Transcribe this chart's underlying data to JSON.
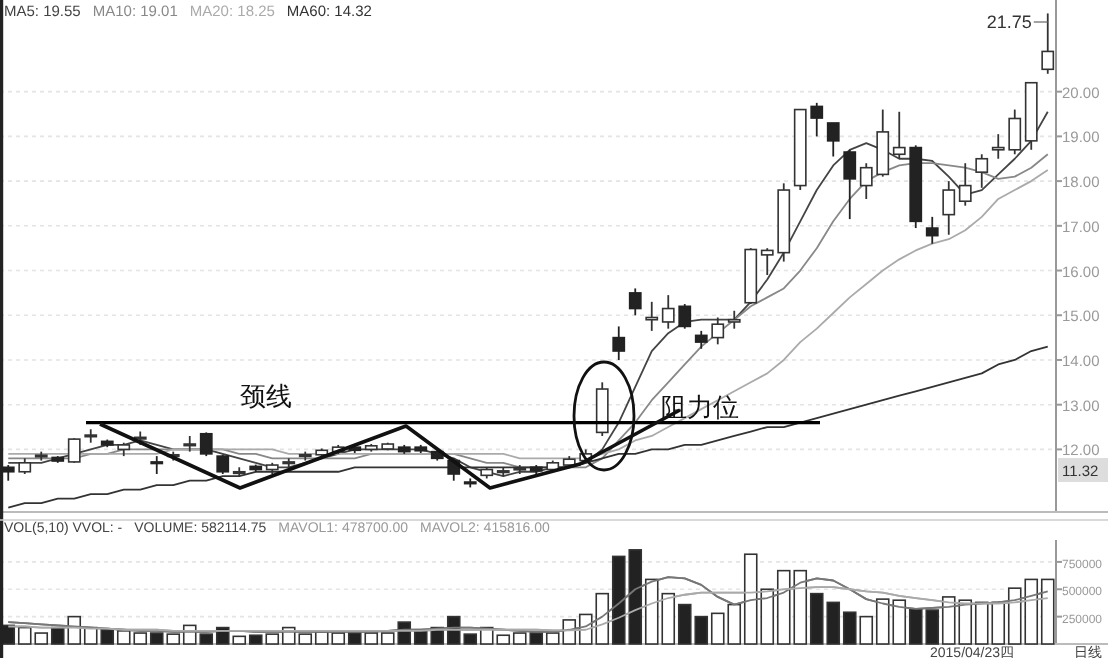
{
  "chart_data": [
    {
      "type": "candlestick",
      "categories": [
        null,
        null,
        null,
        null,
        null,
        null,
        null,
        null,
        null,
        null,
        null,
        null,
        null,
        null,
        null,
        null,
        null,
        null,
        null,
        null,
        null,
        null,
        null,
        null,
        null,
        null,
        null,
        null,
        null,
        null,
        null,
        null,
        null,
        null,
        null,
        null,
        null,
        null,
        null,
        null,
        null,
        null,
        null,
        null,
        null,
        null,
        null,
        null,
        null,
        null,
        null,
        null,
        null,
        null,
        null,
        null,
        null,
        null,
        null,
        null,
        null,
        null,
        null,
        null
      ],
      "ohlc": [
        [
          11.6,
          11.65,
          11.3,
          11.5
        ],
        [
          11.5,
          11.8,
          11.45,
          11.7
        ],
        [
          11.85,
          11.95,
          11.75,
          11.87
        ],
        [
          11.82,
          11.85,
          11.7,
          11.74
        ],
        [
          11.72,
          12.25,
          11.7,
          12.23
        ],
        [
          12.3,
          12.45,
          12.15,
          12.32
        ],
        [
          12.18,
          12.22,
          12.05,
          12.1
        ],
        [
          12.0,
          12.15,
          11.85,
          12.1
        ],
        [
          12.25,
          12.4,
          12.1,
          12.27
        ],
        [
          11.72,
          11.85,
          11.45,
          11.7
        ],
        [
          11.86,
          11.95,
          11.75,
          11.88
        ],
        [
          12.1,
          12.3,
          11.95,
          12.12
        ],
        [
          12.35,
          12.38,
          11.85,
          11.9
        ],
        [
          11.85,
          11.88,
          11.45,
          11.5
        ],
        [
          11.48,
          11.6,
          11.4,
          11.5
        ],
        [
          11.62,
          11.66,
          11.5,
          11.55
        ],
        [
          11.55,
          11.7,
          11.45,
          11.65
        ],
        [
          11.7,
          11.8,
          11.6,
          11.72
        ],
        [
          11.86,
          11.95,
          11.75,
          11.88
        ],
        [
          11.88,
          12.02,
          11.82,
          11.98
        ],
        [
          11.95,
          12.1,
          11.9,
          12.05
        ],
        [
          12.05,
          12.1,
          11.92,
          11.98
        ],
        [
          12.0,
          12.12,
          11.95,
          12.08
        ],
        [
          12.01,
          12.15,
          11.98,
          12.12
        ],
        [
          12.05,
          12.1,
          11.9,
          11.95
        ],
        [
          12.05,
          12.1,
          11.92,
          11.97
        ],
        [
          11.95,
          11.98,
          11.75,
          11.8
        ],
        [
          11.75,
          11.8,
          11.3,
          11.45
        ],
        [
          11.27,
          11.35,
          11.15,
          11.25
        ],
        [
          11.42,
          11.6,
          11.35,
          11.55
        ],
        [
          11.5,
          11.6,
          11.4,
          11.52
        ],
        [
          11.56,
          11.65,
          11.45,
          11.58
        ],
        [
          11.6,
          11.65,
          11.45,
          11.52
        ],
        [
          11.55,
          11.75,
          11.5,
          11.7
        ],
        [
          11.65,
          11.85,
          11.6,
          11.78
        ],
        [
          11.75,
          12.0,
          11.7,
          11.9
        ],
        [
          12.38,
          13.5,
          12.3,
          13.35
        ],
        [
          14.5,
          14.75,
          14.0,
          14.2
        ],
        [
          15.5,
          15.6,
          15.0,
          15.15
        ],
        [
          14.9,
          15.3,
          14.65,
          14.95
        ],
        [
          14.85,
          15.45,
          14.7,
          15.15
        ],
        [
          15.2,
          15.25,
          14.7,
          14.75
        ],
        [
          14.55,
          14.65,
          14.25,
          14.4
        ],
        [
          14.5,
          14.95,
          14.35,
          14.8
        ],
        [
          14.85,
          15.1,
          14.7,
          14.9
        ],
        [
          15.28,
          16.5,
          15.25,
          16.47
        ],
        [
          16.35,
          16.5,
          15.9,
          16.45
        ],
        [
          16.4,
          17.95,
          16.2,
          17.8
        ],
        [
          17.9,
          19.6,
          17.8,
          19.6
        ],
        [
          19.67,
          19.75,
          19.0,
          19.41
        ],
        [
          19.3,
          19.3,
          18.55,
          18.9
        ],
        [
          18.65,
          18.7,
          17.15,
          18.05
        ],
        [
          17.9,
          18.4,
          17.6,
          18.3
        ],
        [
          18.15,
          19.6,
          18.1,
          19.1
        ],
        [
          18.6,
          19.55,
          18.5,
          18.75
        ],
        [
          18.75,
          18.8,
          16.95,
          17.1
        ],
        [
          16.95,
          17.2,
          16.6,
          16.78
        ],
        [
          17.25,
          18.0,
          16.8,
          17.8
        ],
        [
          17.55,
          18.4,
          17.45,
          17.9
        ],
        [
          18.2,
          18.6,
          17.85,
          18.5
        ],
        [
          18.7,
          19.05,
          18.5,
          18.75
        ],
        [
          18.7,
          19.6,
          18.6,
          19.4
        ],
        [
          18.9,
          20.2,
          18.7,
          20.2
        ],
        [
          20.5,
          21.75,
          20.4,
          20.9
        ]
      ],
      "series": [
        {
          "type": "line",
          "color": "#444444",
          "values": [
            11.7,
            11.7,
            11.7,
            11.8,
            11.9,
            12.0,
            12.1,
            12.1,
            12.2,
            12.1,
            12.0,
            12.0,
            12.0,
            11.9,
            11.8,
            11.7,
            11.6,
            11.6,
            11.7,
            11.8,
            11.9,
            12.0,
            12.0,
            12.0,
            12.0,
            12.0,
            11.9,
            11.8,
            11.6,
            11.5,
            11.4,
            11.5,
            11.5,
            11.6,
            11.6,
            11.7,
            12.0,
            12.6,
            13.4,
            14.2,
            14.6,
            14.85,
            14.9,
            14.9,
            14.9,
            15.3,
            15.8,
            16.4,
            17.1,
            17.8,
            18.35,
            18.7,
            18.85,
            18.7,
            18.5,
            18.5,
            18.45,
            18.1,
            17.7,
            17.8,
            18.15,
            18.5,
            18.9,
            19.55
          ]
        },
        {
          "type": "line",
          "color": "#888888",
          "values": [
            11.8,
            11.8,
            11.8,
            11.8,
            11.8,
            11.9,
            11.9,
            12.0,
            12.0,
            12.0,
            12.0,
            12.0,
            12.0,
            12.0,
            11.9,
            11.9,
            11.8,
            11.8,
            11.8,
            11.8,
            11.8,
            11.8,
            11.9,
            11.9,
            11.9,
            11.9,
            11.9,
            11.9,
            11.8,
            11.7,
            11.7,
            11.6,
            11.6,
            11.6,
            11.6,
            11.6,
            11.8,
            12.2,
            12.6,
            13.1,
            13.5,
            13.9,
            14.3,
            14.6,
            14.9,
            15.2,
            15.4,
            15.6,
            16.0,
            16.5,
            17.1,
            17.6,
            18.0,
            18.2,
            18.35,
            18.4,
            18.4,
            18.35,
            18.3,
            18.2,
            18.05,
            18.1,
            18.3,
            18.6
          ]
        },
        {
          "type": "line",
          "color": "#aaaaaa",
          "values": [
            11.9,
            11.9,
            11.9,
            11.9,
            11.9,
            11.9,
            11.9,
            11.9,
            11.9,
            11.9,
            12.0,
            12.0,
            12.0,
            12.0,
            12.0,
            12.0,
            12.0,
            11.9,
            11.9,
            11.9,
            11.9,
            11.9,
            11.9,
            11.9,
            11.9,
            11.9,
            11.9,
            11.9,
            11.9,
            11.9,
            11.9,
            11.8,
            11.8,
            11.8,
            11.8,
            11.8,
            11.9,
            12.0,
            12.2,
            12.3,
            12.5,
            12.7,
            12.9,
            13.1,
            13.3,
            13.5,
            13.7,
            14.0,
            14.4,
            14.7,
            15.05,
            15.4,
            15.7,
            16.0,
            16.25,
            16.45,
            16.6,
            16.7,
            16.9,
            17.2,
            17.6,
            17.8,
            18.0,
            18.25
          ]
        },
        {
          "type": "line",
          "color": "#333333",
          "values": [
            10.7,
            10.8,
            10.8,
            10.9,
            10.9,
            11.0,
            11.0,
            11.1,
            11.1,
            11.2,
            11.2,
            11.3,
            11.3,
            11.4,
            11.4,
            11.5,
            11.5,
            11.5,
            11.5,
            11.5,
            11.5,
            11.6,
            11.6,
            11.6,
            11.6,
            11.6,
            11.6,
            11.6,
            11.6,
            11.6,
            11.6,
            11.6,
            11.6,
            11.6,
            11.6,
            11.7,
            11.8,
            11.9,
            11.9,
            12.0,
            12.0,
            12.1,
            12.1,
            12.2,
            12.3,
            12.4,
            12.5,
            12.5,
            12.6,
            12.7,
            12.8,
            12.9,
            13.0,
            13.1,
            13.2,
            13.3,
            13.4,
            13.5,
            13.6,
            13.7,
            13.9,
            14.0,
            14.2,
            14.3
          ]
        }
      ],
      "ylim": [
        10.6,
        22.05
      ],
      "yticks": [
        {
          "value": 12,
          "label": "12.00"
        },
        {
          "value": 13,
          "label": "13.00"
        },
        {
          "value": 14,
          "label": "14.00"
        },
        {
          "value": 15,
          "label": "15.00"
        },
        {
          "value": 16,
          "label": "16.00"
        },
        {
          "value": 17,
          "label": "17.00"
        },
        {
          "value": 18,
          "label": "18.00"
        },
        {
          "value": 19,
          "label": "19.00"
        },
        {
          "value": 20,
          "label": "20.00"
        }
      ],
      "grid": "y",
      "ref_lines": [
        {
          "axis": "y",
          "value": 12.6,
          "label": "颈线",
          "color": "#000000"
        }
      ],
      "annotations": [
        "MA5: 19.55",
        "MA10: 19.01",
        "MA20: 18.25",
        "MA60: 14.32",
        "11.32",
        "阻力位",
        "21.75"
      ]
    },
    {
      "type": "bar",
      "categories": [
        null,
        null,
        null,
        null,
        null,
        null,
        null,
        null,
        null,
        null,
        null,
        null,
        null,
        null,
        null,
        null,
        null,
        null,
        null,
        null,
        null,
        null,
        null,
        null,
        null,
        null,
        null,
        null,
        null,
        null,
        null,
        null,
        null,
        null,
        null,
        null,
        null,
        null,
        null,
        null,
        null,
        null,
        null,
        null,
        null,
        null,
        null,
        null,
        null,
        null,
        null,
        null,
        null,
        null,
        null,
        null,
        null,
        null,
        null,
        null,
        null,
        null,
        null,
        null
      ],
      "series": [
        {
          "type": "bar",
          "values": [
            170000,
            150000,
            100000,
            150000,
            250000,
            150000,
            130000,
            120000,
            100000,
            100000,
            90000,
            170000,
            90000,
            150000,
            70000,
            80000,
            90000,
            150000,
            90000,
            110000,
            100000,
            100000,
            100000,
            100000,
            200000,
            130000,
            150000,
            250000,
            90000,
            150000,
            80000,
            100000,
            100000,
            100000,
            220000,
            270000,
            460000,
            800000,
            860000,
            590000,
            460000,
            360000,
            250000,
            280000,
            360000,
            820000,
            500000,
            670000,
            670000,
            460000,
            380000,
            290000,
            250000,
            410000,
            400000,
            320000,
            310000,
            430000,
            400000,
            380000,
            380000,
            510000,
            590000,
            590000
          ],
          "colors": [
            "#222222",
            "#ffffff",
            "#ffffff",
            "#222222",
            "#ffffff",
            "#ffffff",
            "#222222",
            "#ffffff",
            "#ffffff",
            "#222222",
            "#ffffff",
            "#ffffff",
            "#222222",
            "#222222",
            "#ffffff",
            "#222222",
            "#ffffff",
            "#ffffff",
            "#ffffff",
            "#ffffff",
            "#ffffff",
            "#222222",
            "#ffffff",
            "#ffffff",
            "#222222",
            "#222222",
            "#222222",
            "#222222",
            "#222222",
            "#ffffff",
            "#ffffff",
            "#ffffff",
            "#222222",
            "#ffffff",
            "#ffffff",
            "#ffffff",
            "#ffffff",
            "#222222",
            "#222222",
            "#ffffff",
            "#ffffff",
            "#222222",
            "#222222",
            "#ffffff",
            "#ffffff",
            "#ffffff",
            "#ffffff",
            "#ffffff",
            "#ffffff",
            "#222222",
            "#222222",
            "#222222",
            "#ffffff",
            "#ffffff",
            "#ffffff",
            "#222222",
            "#222222",
            "#ffffff",
            "#ffffff",
            "#ffffff",
            "#ffffff",
            "#ffffff",
            "#ffffff",
            "#ffffff"
          ]
        },
        {
          "type": "line",
          "color": "#777777",
          "values": [
            200000,
            190000,
            180000,
            170000,
            160000,
            150000,
            140000,
            130000,
            120000,
            120000,
            110000,
            110000,
            110000,
            120000,
            120000,
            110000,
            110000,
            110000,
            110000,
            110000,
            110000,
            110000,
            110000,
            120000,
            130000,
            130000,
            140000,
            150000,
            150000,
            140000,
            130000,
            120000,
            110000,
            110000,
            130000,
            160000,
            250000,
            370000,
            500000,
            570000,
            610000,
            600000,
            540000,
            430000,
            360000,
            400000,
            420000,
            470000,
            560000,
            600000,
            580000,
            500000,
            410000,
            370000,
            340000,
            320000,
            330000,
            340000,
            360000,
            370000,
            380000,
            400000,
            440000,
            480000
          ]
        },
        {
          "type": "line",
          "color": "#aaaaaa",
          "values": [
            160000,
            160000,
            150000,
            150000,
            150000,
            140000,
            140000,
            130000,
            130000,
            130000,
            120000,
            120000,
            120000,
            120000,
            120000,
            120000,
            120000,
            120000,
            120000,
            120000,
            120000,
            120000,
            120000,
            120000,
            120000,
            120000,
            130000,
            130000,
            130000,
            130000,
            130000,
            130000,
            130000,
            125000,
            125000,
            130000,
            180000,
            240000,
            310000,
            370000,
            420000,
            450000,
            470000,
            470000,
            470000,
            470000,
            480000,
            500000,
            510000,
            520000,
            520000,
            500000,
            480000,
            470000,
            440000,
            420000,
            400000,
            380000,
            370000,
            370000,
            370000,
            380000,
            400000,
            420000
          ]
        }
      ],
      "ylim": [
        0,
        950000
      ],
      "yticks": [
        250000,
        500000,
        750000
      ],
      "grid": "y",
      "annotations": [
        "VOL(5,10) VVOL: -",
        "VOLUME: 582114.75",
        "MAVOL1: 478700.00",
        "MAVOL2: 415816.00",
        "2015/04/23四",
        "日线"
      ]
    }
  ]
}
